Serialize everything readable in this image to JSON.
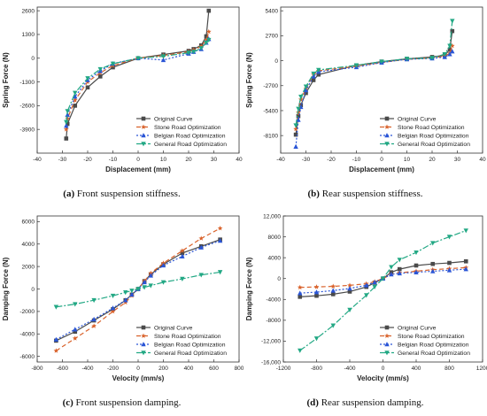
{
  "chart_data": [
    {
      "id": "a",
      "type": "line",
      "xlabel": "Displacement (mm)",
      "ylabel": "Spring Force (N)",
      "xlim": [
        -40,
        40
      ],
      "ylim": [
        -5200,
        2800
      ],
      "xticks": [
        -40,
        -30,
        -20,
        -10,
        0,
        10,
        20,
        30,
        40
      ],
      "xtick_labels": [
        "-40",
        "-30",
        "-20",
        "-10",
        "0",
        "10",
        "20",
        "30",
        "40"
      ],
      "yticks": [
        2600,
        1300,
        0,
        -1300,
        -2600,
        -3900
      ],
      "ytick_labels": [
        "2600",
        "1300",
        "0",
        "-1300",
        "-2600",
        "-3900"
      ],
      "legend_position": "bottom-right",
      "caption_label": "(a)",
      "caption_text": " Front suspension stiffness.",
      "series": [
        {
          "name": "Original Curve",
          "x": [
            -28.5,
            -28,
            -25,
            -20,
            -15,
            -10,
            0,
            10,
            20,
            22,
            25,
            27,
            28
          ],
          "y": [
            -4400,
            -3600,
            -2600,
            -1600,
            -1000,
            -500,
            0,
            200,
            400,
            500,
            700,
            1200,
            2600
          ]
        },
        {
          "name": "Stone Road Optimization",
          "x": [
            -28.5,
            -28,
            -25,
            -20,
            -15,
            -10,
            0,
            10,
            20,
            22,
            25,
            27,
            28
          ],
          "y": [
            -3900,
            -3300,
            -2300,
            -1300,
            -800,
            -400,
            0,
            150,
            350,
            450,
            650,
            1000,
            1450
          ]
        },
        {
          "name": "Belgian Road Optimization",
          "x": [
            -28.5,
            -28,
            -25,
            -20,
            -15,
            -10,
            0,
            10,
            20,
            22,
            25,
            27,
            28
          ],
          "y": [
            -3700,
            -3100,
            -2100,
            -1200,
            -700,
            -300,
            0,
            -100,
            250,
            350,
            500,
            850,
            1050
          ]
        },
        {
          "name": "General Road Optimization",
          "x": [
            -28.5,
            -28,
            -25,
            -20,
            -15,
            -10,
            0,
            10,
            20,
            22,
            25,
            27,
            28
          ],
          "y": [
            -3500,
            -2900,
            -1900,
            -1100,
            -600,
            -300,
            0,
            100,
            300,
            350,
            550,
            850,
            1000
          ]
        }
      ]
    },
    {
      "id": "b",
      "type": "line",
      "xlabel": "Displacement (mm)",
      "ylabel": "Spring Force (N)",
      "xlim": [
        -40,
        40
      ],
      "ylim": [
        -10000,
        5800
      ],
      "xticks": [
        -40,
        -30,
        -20,
        -10,
        0,
        10,
        20,
        30,
        40
      ],
      "xtick_labels": [
        "-40",
        "-30",
        "-20",
        "-10",
        "0",
        "10",
        "20",
        "30",
        "40"
      ],
      "yticks": [
        5400,
        2700,
        0,
        -2700,
        -5400,
        -8100
      ],
      "ytick_labels": [
        "5400",
        "2700",
        "0",
        "-2700",
        "-5400",
        "-8100"
      ],
      "legend_position": "bottom-right",
      "caption_label": "(b)",
      "caption_text": " Rear suspension stiffness.",
      "series": [
        {
          "name": "Original Curve",
          "x": [
            -34,
            -33,
            -32,
            -30,
            -27,
            -25,
            -10,
            0,
            10,
            20,
            25,
            27,
            28
          ],
          "y": [
            -8000,
            -6000,
            -4800,
            -3500,
            -2100,
            -1500,
            -500,
            -100,
            200,
            400,
            600,
            1200,
            3200
          ]
        },
        {
          "name": "Stone Road Optimization",
          "x": [
            -34,
            -33,
            -32,
            -30,
            -27,
            -25,
            -10,
            0,
            10,
            20,
            25,
            27,
            28
          ],
          "y": [
            -7400,
            -5600,
            -4200,
            -3000,
            -1500,
            -1100,
            -600,
            -200,
            150,
            300,
            500,
            800,
            1600
          ]
        },
        {
          "name": "Belgian Road Optimization",
          "x": [
            -34,
            -33,
            -32,
            -30,
            -27,
            -25,
            -10,
            0,
            10,
            20,
            25,
            27,
            28
          ],
          "y": [
            -9300,
            -6400,
            -5000,
            -3200,
            -1700,
            -1200,
            -700,
            -200,
            150,
            250,
            400,
            700,
            1000
          ]
        },
        {
          "name": "General Road Optimization",
          "x": [
            -34,
            -33,
            -32,
            -30,
            -27,
            -25,
            -10,
            0,
            10,
            20,
            25,
            27,
            28
          ],
          "y": [
            -7000,
            -5200,
            -3900,
            -2800,
            -1400,
            -1000,
            -500,
            -100,
            200,
            300,
            700,
            1600,
            4300
          ]
        }
      ]
    },
    {
      "id": "c",
      "type": "line",
      "xlabel": "Velocity (mm/s)",
      "ylabel": "Damping Force (N)",
      "xlim": [
        -800,
        800
      ],
      "ylim": [
        -6500,
        6500
      ],
      "xticks": [
        -800,
        -600,
        -400,
        -200,
        0,
        200,
        400,
        600,
        800
      ],
      "xtick_labels": [
        "-800",
        "-600",
        "-400",
        "-200",
        "0",
        "200",
        "400",
        "600",
        "800"
      ],
      "yticks": [
        6000,
        4000,
        2000,
        0,
        -2000,
        -4000,
        -6000
      ],
      "ytick_labels": [
        "6000",
        "4000",
        "2000",
        "0",
        "-2000",
        "-4000",
        "-6000"
      ],
      "legend_position": "bottom-right",
      "caption_label": "(c)",
      "caption_text": " Front suspension damping.",
      "series": [
        {
          "name": "Original Curve",
          "x": [
            -650,
            -500,
            -350,
            -200,
            -100,
            -50,
            0,
            50,
            100,
            200,
            350,
            500,
            650
          ],
          "y": [
            -4600,
            -3800,
            -2800,
            -1800,
            -1000,
            -500,
            0,
            700,
            1300,
            2200,
            3200,
            3800,
            4400
          ]
        },
        {
          "name": "Stone Road Optimization",
          "x": [
            -650,
            -500,
            -350,
            -200,
            -100,
            -50,
            0,
            50,
            100,
            200,
            350,
            500,
            650
          ],
          "y": [
            -5500,
            -4400,
            -3300,
            -2000,
            -1200,
            -600,
            0,
            700,
            1400,
            2300,
            3400,
            4500,
            5400
          ]
        },
        {
          "name": "Belgian Road Optimization",
          "x": [
            -650,
            -500,
            -350,
            -200,
            -100,
            -50,
            0,
            50,
            100,
            200,
            350,
            500,
            650
          ],
          "y": [
            -4500,
            -3600,
            -2700,
            -1700,
            -1000,
            -500,
            0,
            600,
            1200,
            2100,
            2900,
            3700,
            4300
          ]
        },
        {
          "name": "General Road Optimization",
          "x": [
            -650,
            -500,
            -350,
            -200,
            -100,
            -50,
            0,
            50,
            100,
            200,
            350,
            500,
            650
          ],
          "y": [
            -1600,
            -1350,
            -1000,
            -600,
            -300,
            -150,
            0,
            150,
            300,
            600,
            900,
            1250,
            1500
          ]
        }
      ]
    },
    {
      "id": "d",
      "type": "line",
      "xlabel": "Velocity (mm/s)",
      "ylabel": "Damping Force (N)",
      "xlim": [
        -1200,
        1200
      ],
      "ylim": [
        -16000,
        12000
      ],
      "xticks": [
        -1200,
        -800,
        -400,
        0,
        400,
        800,
        1200
      ],
      "xtick_labels": [
        "-1200",
        "-800",
        "-400",
        "0",
        "400",
        "800",
        "1200"
      ],
      "yticks": [
        12000,
        8000,
        4000,
        0,
        -4000,
        -8000,
        -12000,
        -16000
      ],
      "ytick_labels": [
        "12,000",
        "8000",
        "4000",
        "0",
        "-4000",
        "-8000",
        "-12,000",
        "-16,000"
      ],
      "legend_position": "bottom-right",
      "caption_label": "(d)",
      "caption_text": " Rear suspension damping.",
      "series": [
        {
          "name": "Original Curve",
          "x": [
            -1000,
            -800,
            -600,
            -400,
            -200,
            -100,
            0,
            100,
            200,
            400,
            600,
            800,
            1000
          ],
          "y": [
            -3500,
            -3300,
            -3000,
            -2500,
            -1600,
            -800,
            0,
            1200,
            1800,
            2500,
            2800,
            3000,
            3300
          ]
        },
        {
          "name": "Stone Road Optimization",
          "x": [
            -1000,
            -800,
            -600,
            -400,
            -200,
            -100,
            0,
            100,
            200,
            400,
            600,
            800,
            1000
          ],
          "y": [
            -1700,
            -1600,
            -1500,
            -1300,
            -1000,
            -600,
            0,
            800,
            1100,
            1400,
            1700,
            1900,
            2100
          ]
        },
        {
          "name": "Belgian Road Optimization",
          "x": [
            -1000,
            -800,
            -600,
            -400,
            -200,
            -100,
            0,
            100,
            200,
            400,
            600,
            800,
            1000
          ],
          "y": [
            -2800,
            -2600,
            -2300,
            -1900,
            -1300,
            -700,
            0,
            800,
            1000,
            1200,
            1400,
            1600,
            1800
          ]
        },
        {
          "name": "General Road Optimization",
          "x": [
            -1000,
            -800,
            -600,
            -400,
            -200,
            -100,
            0,
            100,
            200,
            400,
            600,
            800,
            1000
          ],
          "y": [
            -13800,
            -11500,
            -9000,
            -6000,
            -3200,
            -1600,
            0,
            2200,
            3600,
            5000,
            6800,
            8000,
            9200
          ]
        }
      ]
    }
  ],
  "style": {
    "series_colors": [
      "#4a4a4a",
      "#d9622b",
      "#2a55d6",
      "#22a884"
    ],
    "series_markers": [
      "square",
      "star",
      "triangle",
      "triangle-down"
    ],
    "series_dash": [
      "none",
      "5,3",
      "2,2",
      "7,2,2,2"
    ]
  }
}
